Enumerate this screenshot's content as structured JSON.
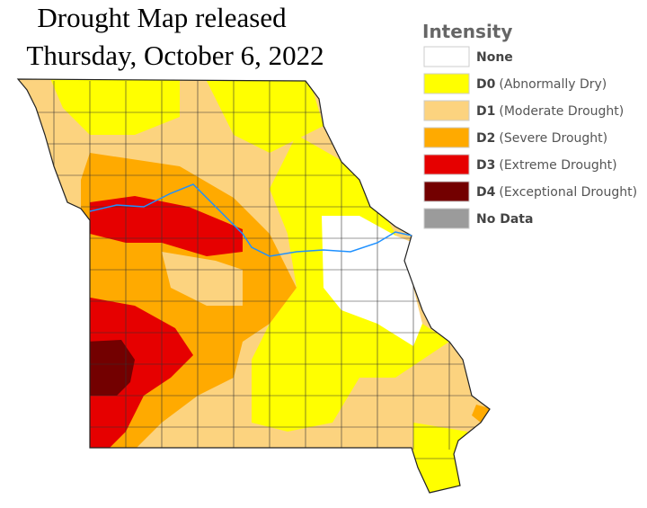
{
  "title": {
    "line1": "Drought Map released",
    "line2": "Thursday, October 6, 2022"
  },
  "legend": {
    "title": "Intensity",
    "items": [
      {
        "label": "None",
        "color": "#ffffff"
      },
      {
        "code": "D0",
        "label": "(Abnormally Dry)",
        "color": "#ffff00"
      },
      {
        "code": "D1",
        "label": "(Moderate Drought)",
        "color": "#fcd37f"
      },
      {
        "code": "D2",
        "label": "(Severe Drought)",
        "color": "#ffaa00"
      },
      {
        "code": "D3",
        "label": "(Extreme Drought)",
        "color": "#e60000"
      },
      {
        "code": "D4",
        "label": "(Exceptional Drought)",
        "color": "#730000"
      },
      {
        "label": "No Data",
        "color": "#9b9b9b"
      }
    ]
  }
}
